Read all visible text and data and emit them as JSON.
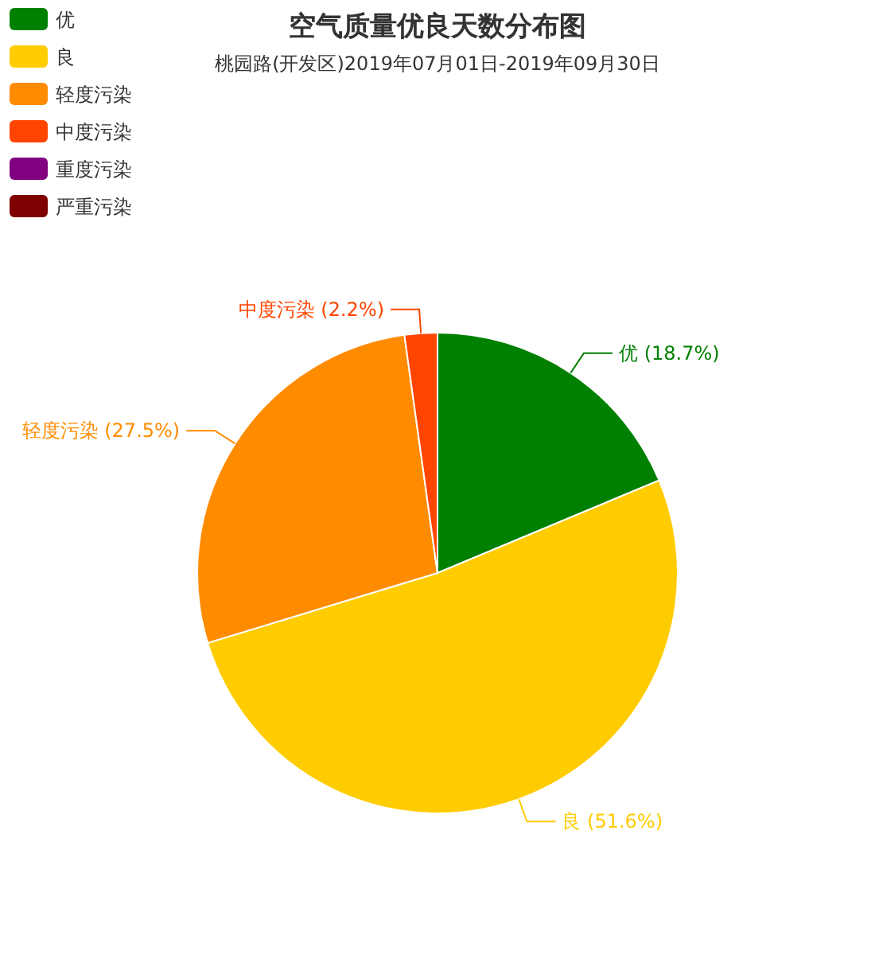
{
  "chart_data": {
    "type": "pie",
    "title": "空气质量优良天数分布图",
    "subtitle": "桃园路(开发区)2019年07月01日-2019年09月30日",
    "categories": [
      "优",
      "良",
      "轻度污染",
      "中度污染",
      "重度污染",
      "严重污染"
    ],
    "values": [
      18.7,
      51.6,
      27.5,
      2.2,
      0,
      0
    ],
    "colors": [
      "#008000",
      "#ffcc00",
      "#ff8c00",
      "#ff4500",
      "#800080",
      "#7e0000"
    ],
    "value_labels": [
      "优 (18.7%)",
      "良 (51.6%)",
      "轻度污染 (27.5%)",
      "中度污染 (2.2%)",
      null,
      null
    ],
    "legend": "top left"
  }
}
